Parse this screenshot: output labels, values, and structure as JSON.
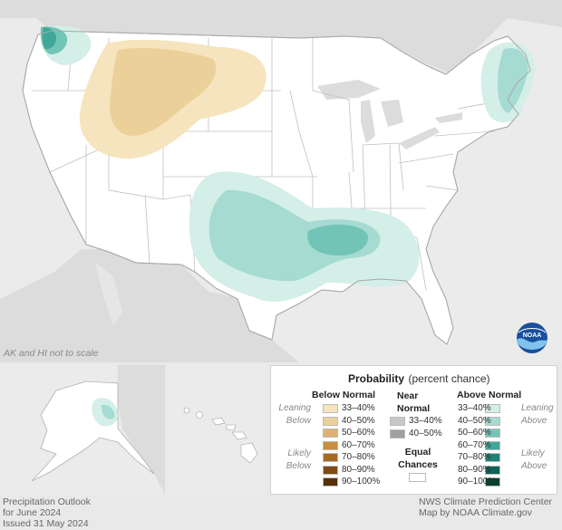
{
  "map": {
    "scale_note": "AK and HI not to scale",
    "logo_text": "NOAA"
  },
  "legend": {
    "title": "Probability",
    "subtitle": "(percent chance)",
    "below_header": "Below Normal",
    "near_header": "Near Normal",
    "above_header": "Above Normal",
    "leaning_below": "Leaning Below",
    "likely_below": "Likely Below",
    "leaning_above": "Leaning Above",
    "likely_above": "Likely Above",
    "equal_chances": "Equal Chances",
    "ranges": [
      "33–40%",
      "40–50%",
      "50–60%",
      "60–70%",
      "70–80%",
      "80–90%",
      "90–100%"
    ],
    "near_ranges": [
      "33–40%",
      "40–50%"
    ],
    "below_colors": [
      "#f6e4be",
      "#ecd09a",
      "#dcb171",
      "#c98f3c",
      "#a86a22",
      "#7f4a14",
      "#55300a"
    ],
    "above_colors": [
      "#d4eee8",
      "#a5dbd1",
      "#72c5b6",
      "#3fa899",
      "#1e8276",
      "#0e6256",
      "#05402f"
    ],
    "near_colors": [
      "#c8c8c8",
      "#a0a0a0"
    ]
  },
  "footer": {
    "left_line1": "Precipitation Outlook",
    "left_line2": "for June 2024",
    "left_line3": "Issued 31 May 2024",
    "right_line1": "NWS Climate Prediction Center",
    "right_line2": "Map by NOAA Climate.gov"
  }
}
